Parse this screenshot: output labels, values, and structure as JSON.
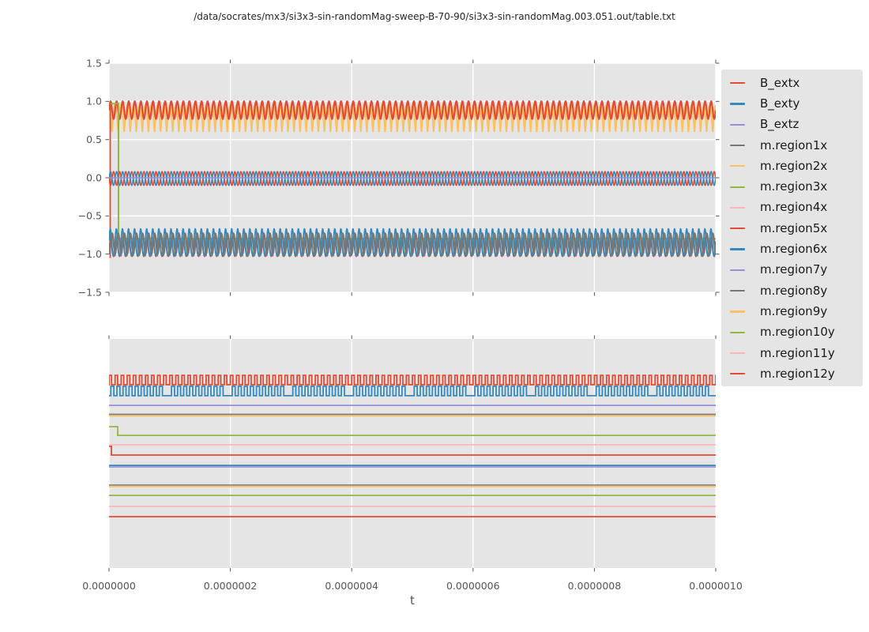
{
  "title": "/data/socrates/mx3/si3x3-sin-randomMag-sweep-B-70-90/si3x3-sin-randomMag.003.051.out/table.txt",
  "xlabel": "t",
  "palette": {
    "red": "#E24A33",
    "blue": "#348ABD",
    "purple": "#988ED5",
    "gray": "#777777",
    "orange": "#FBC15E",
    "green": "#8EBA42",
    "pink": "#FFB5B8"
  },
  "colors": {
    "figure_bg": "#FFFFFF",
    "axes_bg": "#E5E5E5",
    "grid": "#FFFFFF",
    "tick": "#555555",
    "tick_label": "#555555",
    "title_text": "#262626",
    "legend_bg": "#E5E5E5",
    "legend_text": "#1a1a1a"
  },
  "legend": {
    "entries": [
      {
        "label": "B_extx",
        "color": "red"
      },
      {
        "label": "B_exty",
        "color": "blue"
      },
      {
        "label": "B_extz",
        "color": "purple"
      },
      {
        "label": "m.region1x",
        "color": "gray"
      },
      {
        "label": "m.region2x",
        "color": "orange"
      },
      {
        "label": "m.region3x",
        "color": "green"
      },
      {
        "label": "m.region4x",
        "color": "pink"
      },
      {
        "label": "m.region5x",
        "color": "red"
      },
      {
        "label": "m.region6x",
        "color": "blue"
      },
      {
        "label": "m.region7y",
        "color": "purple"
      },
      {
        "label": "m.region8y",
        "color": "gray"
      },
      {
        "label": "m.region9y",
        "color": "orange"
      },
      {
        "label": "m.region10y",
        "color": "green"
      },
      {
        "label": "m.region11y",
        "color": "pink"
      },
      {
        "label": "m.region12y",
        "color": "red"
      }
    ]
  },
  "chart_data": [
    {
      "id": "top-subplot",
      "type": "line",
      "xlim": [
        0,
        1e-06
      ],
      "ylim": [
        -1.5,
        1.5
      ],
      "xticks": [
        0,
        2e-07,
        4e-07,
        6e-07,
        8e-07,
        1e-06
      ],
      "xtick_labels": [],
      "yticks": [
        {
          "v": 1.5,
          "label": "1.5"
        },
        {
          "v": 1.0,
          "label": "1.0"
        },
        {
          "v": 0.5,
          "label": "0.5"
        },
        {
          "v": 0.0,
          "label": "0.0"
        },
        {
          "v": -0.5,
          "label": "−0.5"
        },
        {
          "v": -1.0,
          "label": "−1.0"
        },
        {
          "v": -1.5,
          "label": "−1.5"
        }
      ],
      "grid": "both",
      "series": [
        {
          "name": "upper-band-orange-dips",
          "kind": "vee",
          "color": "orange",
          "max": 0.95,
          "min": 0.6,
          "freq": 100,
          "power": 1,
          "lw": 2.0
        },
        {
          "name": "upper-band-red-osc",
          "kind": "sine",
          "color": "red",
          "center": 0.885,
          "amp": 0.115,
          "freq": 100,
          "lw": 2.2
        },
        {
          "name": "green-initial-step",
          "kind": "step",
          "color": "green",
          "v1": 0.97,
          "v2": -0.8,
          "t0": 0.0156,
          "lw": 2.0
        },
        {
          "name": "red-initial-transient",
          "kind": "vline",
          "color": "red",
          "t": 0.002,
          "v1": 1.0,
          "v2": -1.05,
          "lw": 1.8
        },
        {
          "name": "lower-band-red-osc",
          "kind": "sine",
          "color": "red",
          "center": -0.93,
          "amp": 0.1,
          "freq": 100,
          "lw": 1.8
        },
        {
          "name": "lower-band-blue-spikes",
          "kind": "spike",
          "color": "blue",
          "base": -1.02,
          "peak": -0.67,
          "freq": 100,
          "power": 2.5,
          "phase": 0.9,
          "lw": 1.8
        },
        {
          "name": "lower-band-gray-spikes",
          "kind": "spike",
          "color": "gray",
          "base": -1.0,
          "peak": -0.73,
          "freq": 100,
          "power": 1.6,
          "phase": 0,
          "lw": 2.4
        },
        {
          "name": "mid-band-red-osc",
          "kind": "sine",
          "color": "red",
          "center": -0.01,
          "amp": 0.09,
          "freq": 100,
          "phase": 3.1416,
          "lw": 1.6
        },
        {
          "name": "mid-band-blue-osc",
          "kind": "sine",
          "color": "blue",
          "center": -0.01,
          "amp": 0.09,
          "freq": 100,
          "phase": 0,
          "lw": 1.6
        },
        {
          "name": "mid-band-purple-flat",
          "kind": "flat",
          "color": "purple",
          "v": 0.0,
          "lw": 1.5
        }
      ]
    },
    {
      "id": "bottom-subplot",
      "type": "line",
      "xlim": [
        0,
        1e-06
      ],
      "ylim": [
        0,
        1
      ],
      "xticks": [
        0,
        2e-07,
        4e-07,
        6e-07,
        8e-07,
        1e-06
      ],
      "xtick_labels": [
        "0.0000000",
        "0.0000002",
        "0.0000004",
        "0.0000006",
        "0.0000008",
        "0.0000010"
      ],
      "yticks": [],
      "grid": "x",
      "series": [
        {
          "name": "square-red",
          "kind": "square",
          "color": "red",
          "high": 0.841,
          "low": 0.8,
          "freq": 100,
          "duty": 0.42,
          "lw": 1.8
        },
        {
          "name": "square-blue",
          "kind": "square",
          "color": "blue",
          "high": 0.793,
          "low": 0.752,
          "freq": 100,
          "duty": 0.5,
          "phase_frac": 0.3,
          "slip": 10,
          "lw": 1.8
        },
        {
          "name": "flat-purple-1",
          "kind": "flat",
          "color": "purple",
          "v": 0.71,
          "lw": 1.8
        },
        {
          "name": "flat-orange-1",
          "kind": "flat",
          "color": "orange",
          "v": 0.664,
          "lw": 1.8
        },
        {
          "name": "flat-gray-1",
          "kind": "flat",
          "color": "gray",
          "v": 0.671,
          "lw": 1.6
        },
        {
          "name": "step-green",
          "kind": "step",
          "color": "green",
          "v1": 0.617,
          "v2": 0.579,
          "t0": 0.0143,
          "lw": 1.8
        },
        {
          "name": "flat-pink-1",
          "kind": "flat",
          "color": "pink",
          "v": 0.538,
          "lw": 1.8
        },
        {
          "name": "step-red",
          "kind": "step",
          "color": "red",
          "v1": 0.531,
          "v2": 0.493,
          "t0": 0.004,
          "lw": 1.8
        },
        {
          "name": "flat-purple-2",
          "kind": "flat",
          "color": "purple",
          "v": 0.441,
          "lw": 1.6
        },
        {
          "name": "flat-blue-2",
          "kind": "flat",
          "color": "blue",
          "v": 0.448,
          "lw": 1.8
        },
        {
          "name": "flat-orange-2",
          "kind": "flat",
          "color": "orange",
          "v": 0.355,
          "lw": 1.8
        },
        {
          "name": "flat-gray-2",
          "kind": "flat",
          "color": "gray",
          "v": 0.362,
          "lw": 1.6
        },
        {
          "name": "flat-green-2",
          "kind": "flat",
          "color": "green",
          "v": 0.317,
          "lw": 1.8
        },
        {
          "name": "flat-pink-2",
          "kind": "flat",
          "color": "pink",
          "v": 0.269,
          "lw": 1.8
        },
        {
          "name": "flat-red-3",
          "kind": "flat",
          "color": "red",
          "v": 0.224,
          "lw": 1.8
        }
      ]
    }
  ]
}
